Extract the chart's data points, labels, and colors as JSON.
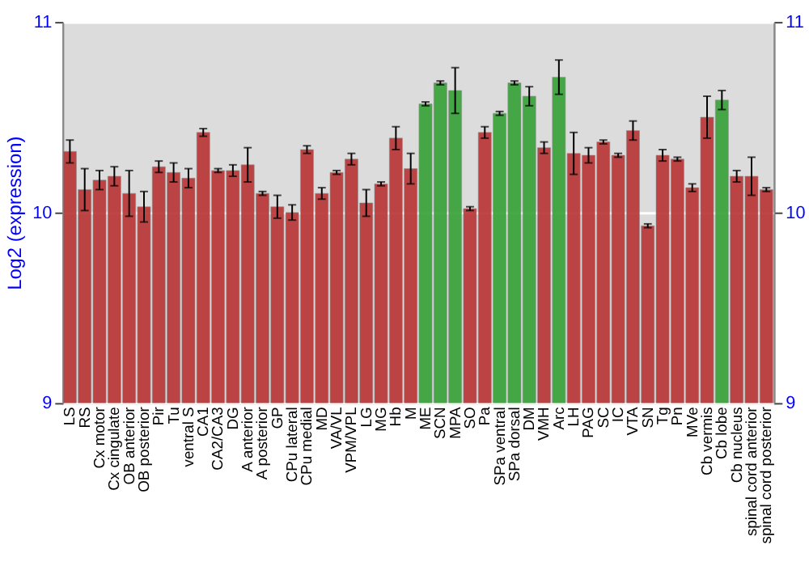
{
  "chart_data": {
    "type": "bar",
    "categories": [
      "LS",
      "RS",
      "Cx motor",
      "Cx cingulate",
      "OB anterior",
      "OB posterior",
      "Pir",
      "Tu",
      "ventral S",
      "CA1",
      "CA2/CA3",
      "DG",
      "A anterior",
      "A posterior",
      "GP",
      "CPu lateral",
      "CPu medial",
      "MD",
      "VA/VL",
      "VPM/VPL",
      "LG",
      "MG",
      "Hb",
      "M",
      "ME",
      "SCN",
      "MPA",
      "SO",
      "Pa",
      "SPa ventral",
      "SPa dorsal",
      "DM",
      "VMH",
      "Arc",
      "LH",
      "PAG",
      "SC",
      "IC",
      "VTA",
      "SN",
      "Tg",
      "Pn",
      "MVe",
      "Cb vermis",
      "Cb lobe",
      "Cb nucleus",
      "spinal cord anterior",
      "spinal cord posterior"
    ],
    "values": [
      10.32,
      10.12,
      10.17,
      10.19,
      10.1,
      10.03,
      10.24,
      10.21,
      10.18,
      10.42,
      10.22,
      10.22,
      10.25,
      10.1,
      10.03,
      10.0,
      10.33,
      10.1,
      10.21,
      10.28,
      10.05,
      10.15,
      10.39,
      10.23,
      10.57,
      10.68,
      10.64,
      10.02,
      10.42,
      10.52,
      10.68,
      10.61,
      10.34,
      10.71,
      10.31,
      10.3,
      10.37,
      10.3,
      10.43,
      9.93,
      10.3,
      10.28,
      10.13,
      10.5,
      10.59,
      10.19,
      10.19,
      10.12
    ],
    "errors": [
      0.06,
      0.11,
      0.05,
      0.05,
      0.12,
      0.08,
      0.03,
      0.05,
      0.05,
      0.02,
      0.01,
      0.03,
      0.09,
      0.01,
      0.06,
      0.04,
      0.02,
      0.03,
      0.01,
      0.03,
      0.07,
      0.01,
      0.06,
      0.08,
      0.01,
      0.01,
      0.12,
      0.01,
      0.03,
      0.01,
      0.01,
      0.05,
      0.03,
      0.09,
      0.11,
      0.04,
      0.01,
      0.01,
      0.05,
      0.01,
      0.03,
      0.01,
      0.02,
      0.11,
      0.05,
      0.03,
      0.1,
      0.01
    ],
    "colors": [
      "#b83232",
      "#b83232",
      "#b83232",
      "#b83232",
      "#b83232",
      "#b83232",
      "#b83232",
      "#b83232",
      "#b83232",
      "#b83232",
      "#b83232",
      "#b83232",
      "#b83232",
      "#b83232",
      "#b83232",
      "#b83232",
      "#b83232",
      "#b83232",
      "#b83232",
      "#b83232",
      "#b83232",
      "#b83232",
      "#b83232",
      "#b83232",
      "#33a033",
      "#33a033",
      "#33a033",
      "#b83232",
      "#b83232",
      "#33a033",
      "#33a033",
      "#33a033",
      "#b83232",
      "#33a033",
      "#b83232",
      "#b83232",
      "#b83232",
      "#b83232",
      "#b83232",
      "#b83232",
      "#b83232",
      "#b83232",
      "#b83232",
      "#b83232",
      "#33a033",
      "#b83232",
      "#b83232",
      "#b83232"
    ],
    "ylabel": "Log2 (expression)",
    "ylim": [
      9,
      11
    ],
    "yticks": [
      9,
      10,
      11
    ],
    "y2lim": [
      9,
      11
    ],
    "y2ticks": [
      9,
      10,
      11
    ],
    "grid": "y"
  }
}
